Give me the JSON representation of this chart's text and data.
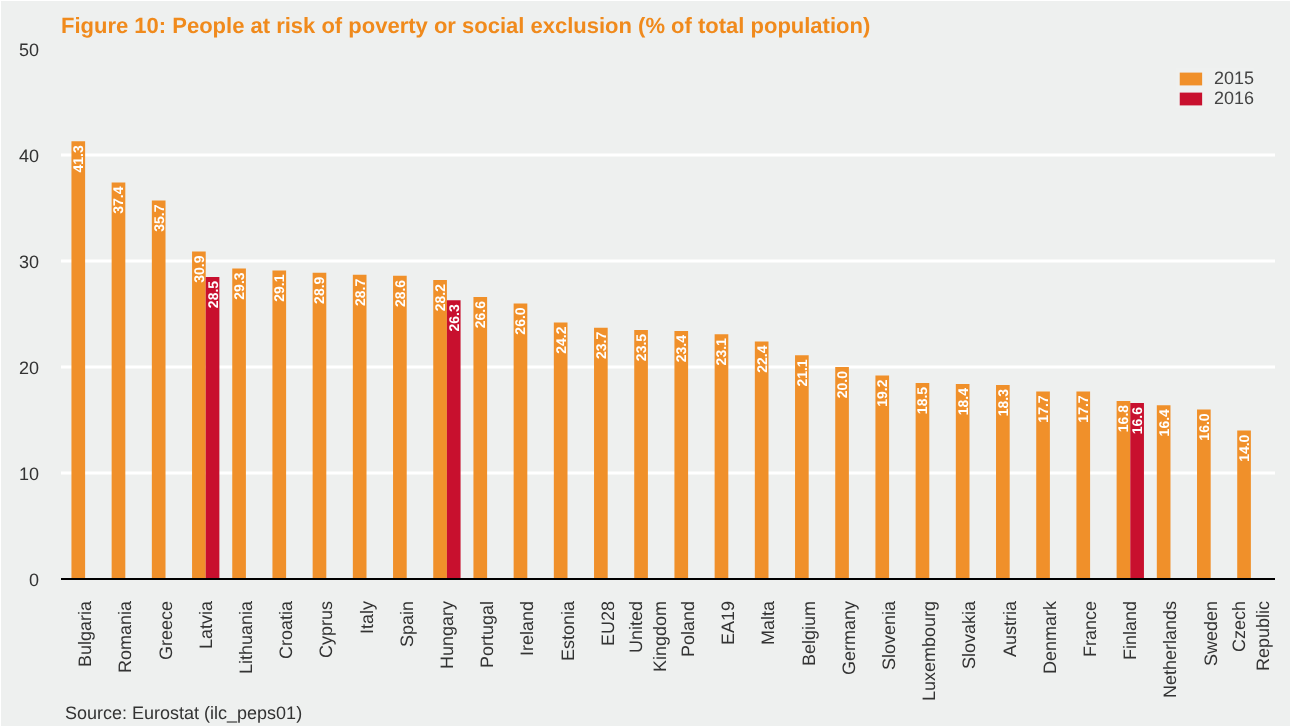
{
  "chart_data": {
    "type": "bar",
    "title": "Figure 10: People at risk of poverty or social exclusion (% of total population)",
    "categories": [
      "Bulgaria",
      "Romania",
      "Greece",
      "Latvia",
      "Lithuania",
      "Croatia",
      "Cyprus",
      "Italy",
      "Spain",
      "Hungary",
      "Portugal",
      "Ireland",
      "Estonia",
      "EU28",
      "United Kingdom",
      "Poland",
      "EA19",
      "Malta",
      "Belgium",
      "Germany",
      "Slovenia",
      "Luxembourg",
      "Slovakia",
      "Austria",
      "Denmark",
      "France",
      "Finland",
      "Netherlands",
      "Sweden",
      "Czech Republic"
    ],
    "series": [
      {
        "name": "2015",
        "color": "#f0902a",
        "values": [
          41.3,
          37.4,
          35.7,
          30.9,
          29.3,
          29.1,
          28.9,
          28.7,
          28.6,
          28.2,
          26.6,
          26.0,
          24.2,
          23.7,
          23.5,
          23.4,
          23.1,
          22.4,
          21.1,
          20.0,
          19.2,
          18.5,
          18.4,
          18.3,
          17.7,
          17.7,
          16.8,
          16.4,
          16.0,
          14.0
        ],
        "value_labels": [
          "41.3",
          "37.4",
          "35.7",
          "30.9",
          "29.3",
          "29.1",
          "28.9",
          "28.7",
          "28.6",
          "28.2",
          "26.6",
          "26.0",
          "24.2",
          "23.7",
          "23.5",
          "23.4",
          "23.1",
          "22.4",
          "21.1",
          "20.0",
          "19.2",
          "18.5",
          "18.4",
          "18.3",
          "17.7",
          "17.7",
          "16.8",
          "16.4",
          "16.0",
          "14.0"
        ]
      },
      {
        "name": "2016",
        "color": "#c8102e",
        "values": [
          null,
          null,
          null,
          28.5,
          null,
          null,
          null,
          null,
          null,
          26.3,
          null,
          null,
          null,
          null,
          null,
          null,
          null,
          null,
          null,
          null,
          null,
          null,
          null,
          null,
          null,
          null,
          16.6,
          null,
          null,
          null
        ],
        "value_labels": [
          null,
          null,
          null,
          "28.5",
          null,
          null,
          null,
          null,
          null,
          "26.3",
          null,
          null,
          null,
          null,
          null,
          null,
          null,
          null,
          null,
          null,
          null,
          null,
          null,
          null,
          null,
          null,
          "16.6",
          null,
          null,
          null
        ]
      }
    ],
    "ylim": [
      0,
      50
    ],
    "yticks": [
      0,
      10,
      20,
      30,
      40,
      50
    ],
    "grid": "y",
    "legend": "top right",
    "annotations": [
      "Source: Eurostat (ilc_peps01)"
    ]
  }
}
